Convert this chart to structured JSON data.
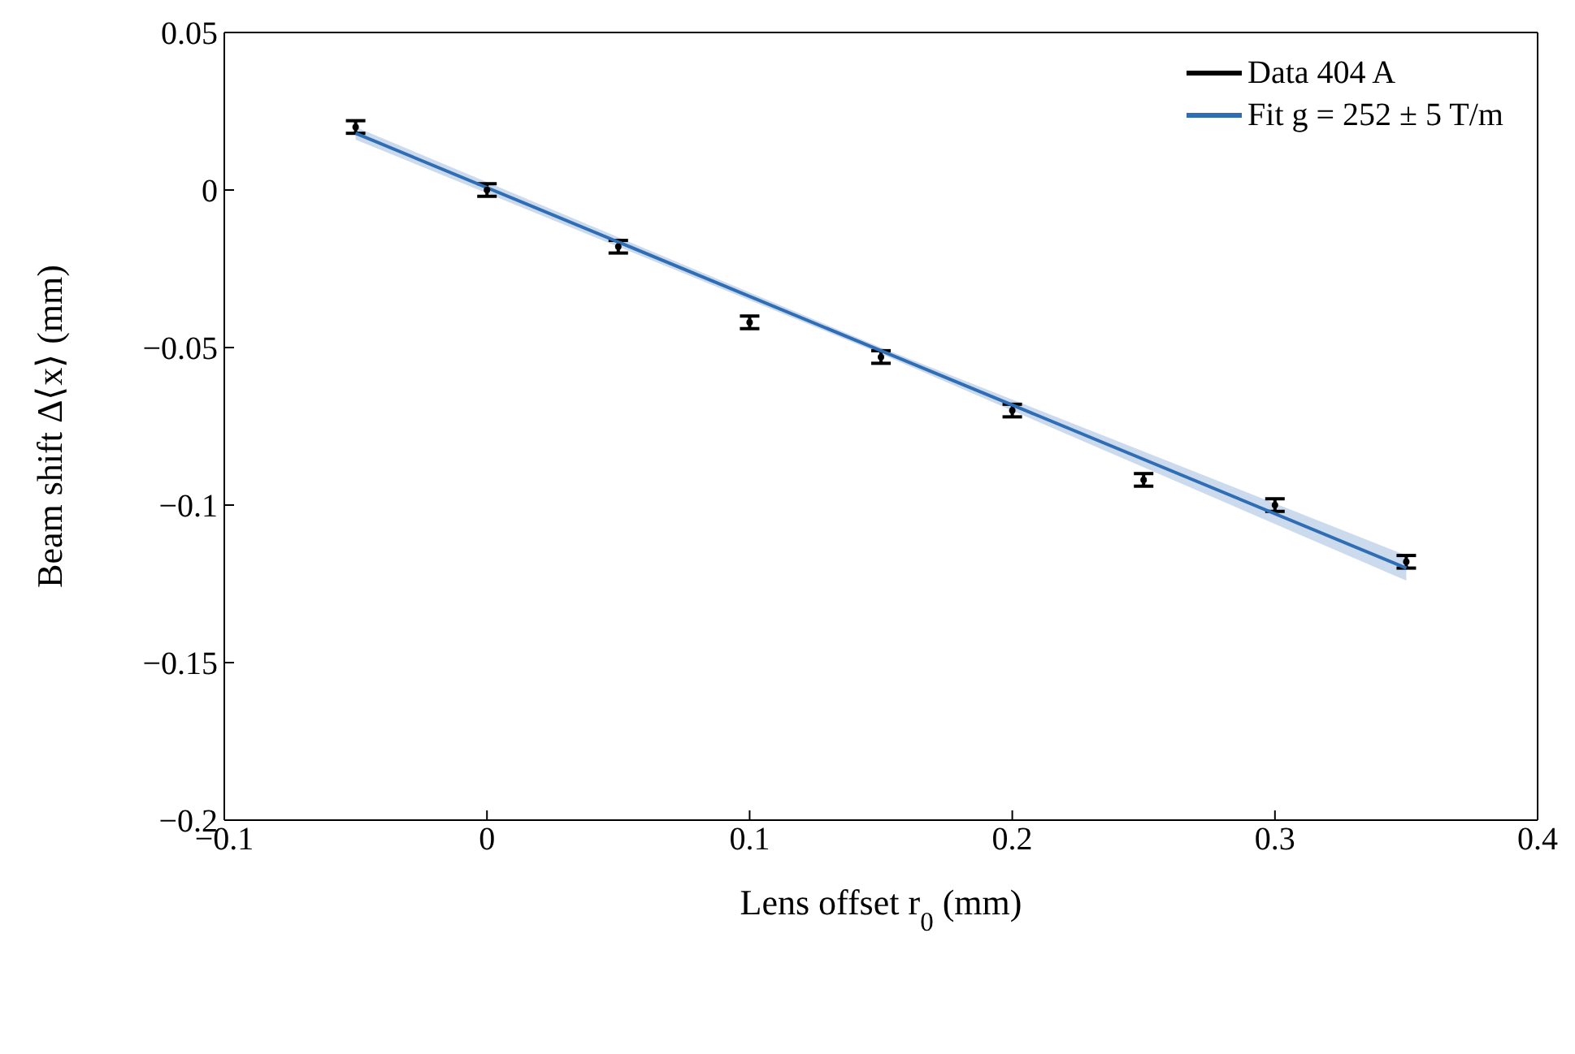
{
  "chart_data": {
    "type": "scatter",
    "xlabel": "Lens offset r$_{0}$ (mm)",
    "ylabel": "Beam shift Δ⟨x⟩ (mm)",
    "xlim": [
      -0.1,
      0.4
    ],
    "xticks": [
      {
        "value": -0.1,
        "label": "−0.1"
      },
      0,
      0.1,
      0.2,
      0.3,
      0.4
    ],
    "ylim": [
      -0.2,
      0.05
    ],
    "yticks": [
      {
        "value": -0.2,
        "label": "−0.2"
      },
      {
        "value": -0.15,
        "label": "−0.15"
      },
      {
        "value": -0.1,
        "label": "−0.1"
      },
      {
        "value": -0.05,
        "label": "−0.05"
      },
      0,
      0.05
    ],
    "grid": false,
    "legend": "top right",
    "series": [
      {
        "name": "Data 404 A",
        "color": "#000000",
        "x": [
          -0.05,
          0,
          0.05,
          0.1,
          0.15,
          0.2,
          0.25,
          0.3,
          0.35
        ],
        "values": [
          0.02,
          0,
          -0.018,
          -0.042,
          -0.053,
          -0.07,
          -0.092,
          -0.1,
          -0.118
        ],
        "errors": [
          0.002,
          0.002,
          0.002,
          0.002,
          0.002,
          0.002,
          0.002,
          0.002,
          0.002
        ]
      },
      {
        "name": "Fit g = 252 ± 5 T/m",
        "type": "line",
        "color": "#2f6db5",
        "x": [
          -0.05,
          0.15,
          0.35
        ],
        "values": [
          0.018,
          -0.051,
          -0.12
        ],
        "lower": [
          0.016,
          -0.052,
          -0.124
        ],
        "upper": [
          0.02,
          -0.05,
          -0.116
        ]
      }
    ]
  }
}
